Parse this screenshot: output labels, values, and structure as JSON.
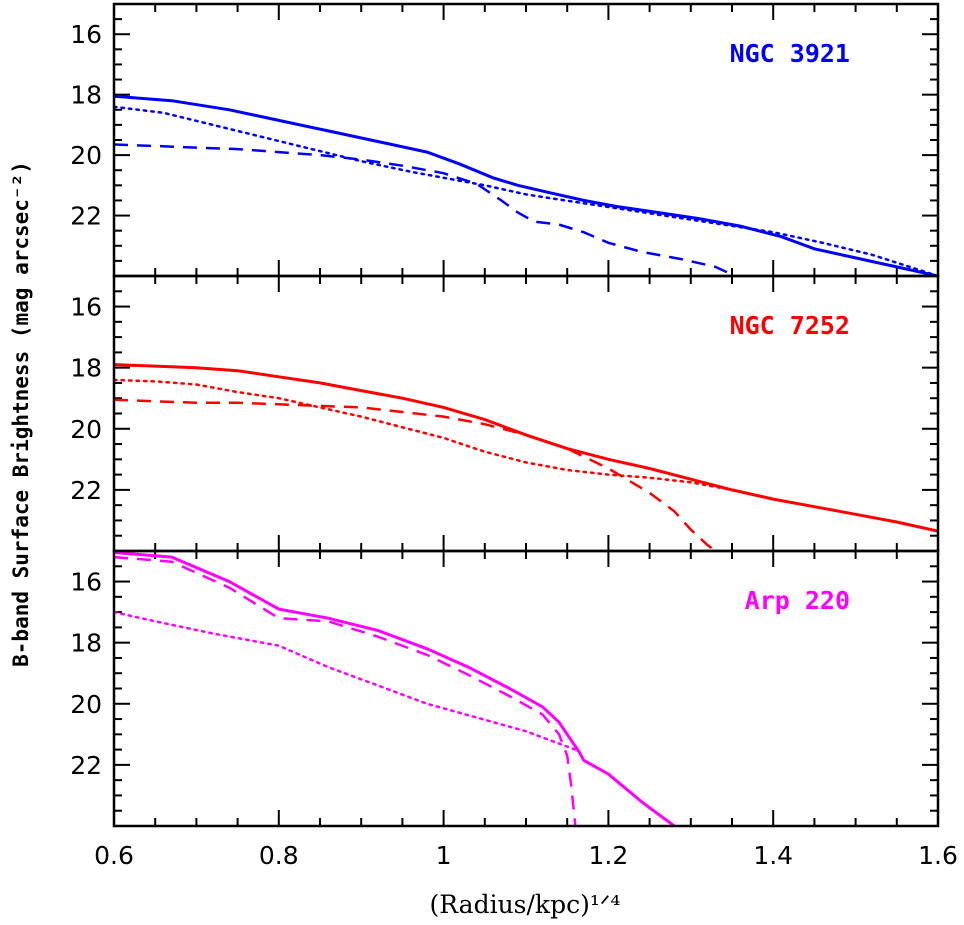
{
  "chart_data": [
    {
      "type": "line",
      "label": "NGC 3921",
      "color": "#0000ff",
      "xlim": [
        0.6,
        1.6
      ],
      "ylim": [
        15,
        24
      ],
      "y_inverted": true,
      "yticks": [
        "16",
        "18",
        "20",
        "22"
      ],
      "series": [
        {
          "style": "solid",
          "x": [
            0.6,
            0.67,
            0.74,
            0.8,
            0.86,
            0.92,
            0.98,
            1.02,
            1.06,
            1.09,
            1.13,
            1.17,
            1.21,
            1.26,
            1.31,
            1.36,
            1.41,
            1.45,
            1.5,
            1.55,
            1.6
          ],
          "y": [
            18.05,
            18.2,
            18.5,
            18.85,
            19.2,
            19.55,
            19.9,
            20.3,
            20.75,
            21.0,
            21.25,
            21.5,
            21.7,
            21.9,
            22.1,
            22.35,
            22.7,
            23.1,
            23.4,
            23.7,
            24.0
          ]
        },
        {
          "style": "dotted",
          "x": [
            0.6,
            0.66,
            0.72,
            0.78,
            0.84,
            0.9,
            0.96,
            1.0,
            1.05,
            1.1,
            1.16,
            1.22,
            1.28,
            1.34,
            1.4,
            1.46,
            1.52,
            1.6
          ],
          "y": [
            18.4,
            18.6,
            19.0,
            19.4,
            19.8,
            20.2,
            20.55,
            20.75,
            21.0,
            21.3,
            21.55,
            21.8,
            22.05,
            22.3,
            22.55,
            22.9,
            23.3,
            24.0
          ]
        },
        {
          "style": "dashed",
          "x": [
            0.6,
            0.65,
            0.7,
            0.75,
            0.8,
            0.85,
            0.9,
            0.95,
            1.0,
            1.04,
            1.07,
            1.09,
            1.11,
            1.14,
            1.17,
            1.2,
            1.24,
            1.29,
            1.33,
            1.35
          ],
          "y": [
            19.65,
            19.7,
            19.75,
            19.8,
            19.9,
            20.0,
            20.15,
            20.35,
            20.6,
            20.95,
            21.5,
            21.9,
            22.2,
            22.3,
            22.55,
            22.9,
            23.2,
            23.45,
            23.7,
            23.95
          ]
        }
      ]
    },
    {
      "type": "line",
      "label": "NGC 7252",
      "color": "#ff0000",
      "xlim": [
        0.6,
        1.6
      ],
      "ylim": [
        15,
        24
      ],
      "y_inverted": true,
      "yticks": [
        "16",
        "18",
        "20",
        "22"
      ],
      "series": [
        {
          "style": "solid",
          "x": [
            0.6,
            0.65,
            0.7,
            0.75,
            0.8,
            0.85,
            0.9,
            0.95,
            1.0,
            1.05,
            1.1,
            1.15,
            1.2,
            1.25,
            1.3,
            1.35,
            1.4,
            1.45,
            1.5,
            1.55,
            1.6
          ],
          "y": [
            17.9,
            17.95,
            18.0,
            18.1,
            18.3,
            18.5,
            18.75,
            19.0,
            19.3,
            19.7,
            20.2,
            20.65,
            21.0,
            21.3,
            21.65,
            22.0,
            22.3,
            22.55,
            22.8,
            23.05,
            23.35
          ]
        },
        {
          "style": "dotted",
          "x": [
            0.6,
            0.65,
            0.7,
            0.75,
            0.8,
            0.85,
            0.9,
            0.95,
            1.0,
            1.05,
            1.1,
            1.15,
            1.2,
            1.25,
            1.3,
            1.35
          ],
          "y": [
            18.4,
            18.45,
            18.55,
            18.8,
            19.0,
            19.3,
            19.6,
            19.95,
            20.3,
            20.75,
            21.1,
            21.35,
            21.5,
            21.6,
            21.75,
            22.0
          ]
        },
        {
          "style": "dashed",
          "x": [
            0.6,
            0.65,
            0.7,
            0.75,
            0.8,
            0.85,
            0.9,
            0.95,
            1.0,
            1.05,
            1.1,
            1.15,
            1.2,
            1.25,
            1.28,
            1.3,
            1.32,
            1.33
          ],
          "y": [
            19.05,
            19.1,
            19.15,
            19.15,
            19.2,
            19.25,
            19.3,
            19.45,
            19.6,
            19.85,
            20.2,
            20.65,
            21.3,
            22.1,
            22.7,
            23.3,
            23.8,
            24.0
          ]
        }
      ]
    },
    {
      "type": "line",
      "label": "Arp 220",
      "color": "#ff00ff",
      "xlim": [
        0.6,
        1.6
      ],
      "ylim": [
        15,
        24
      ],
      "y_inverted": true,
      "yticks": [
        "16",
        "18",
        "20",
        "22"
      ],
      "series": [
        {
          "style": "solid",
          "x": [
            0.6,
            0.67,
            0.74,
            0.8,
            0.86,
            0.92,
            0.98,
            1.03,
            1.08,
            1.12,
            1.14,
            1.165,
            1.17,
            1.2,
            1.22,
            1.24,
            1.26,
            1.28
          ],
          "y": [
            15.05,
            15.2,
            16.0,
            16.9,
            17.2,
            17.6,
            18.2,
            18.8,
            19.5,
            20.1,
            20.6,
            21.6,
            21.85,
            22.3,
            22.75,
            23.2,
            23.6,
            24.0
          ]
        },
        {
          "style": "dashed",
          "x": [
            0.6,
            0.67,
            0.74,
            0.8,
            0.86,
            0.92,
            0.98,
            1.03,
            1.08,
            1.12,
            1.14,
            1.15,
            1.155,
            1.16
          ],
          "y": [
            15.2,
            15.35,
            16.2,
            17.2,
            17.3,
            17.8,
            18.4,
            19.05,
            19.75,
            20.35,
            21.0,
            21.7,
            22.7,
            24.0
          ]
        },
        {
          "style": "dotted",
          "x": [
            0.6,
            0.65,
            0.72,
            0.8,
            0.86,
            0.92,
            0.98,
            1.04,
            1.1,
            1.16
          ],
          "y": [
            17.0,
            17.3,
            17.7,
            18.1,
            18.8,
            19.4,
            20.0,
            20.45,
            20.9,
            21.5
          ]
        }
      ]
    }
  ],
  "shared_axes": {
    "xticks": [
      "0.6",
      "0.8",
      "1",
      "1.2",
      "1.4",
      "1.6"
    ],
    "xlabel": "(Radius/kpc)¹ᐟ⁴",
    "ylabel": "B-band Surface Brightness (mag arcsec⁻²)"
  }
}
